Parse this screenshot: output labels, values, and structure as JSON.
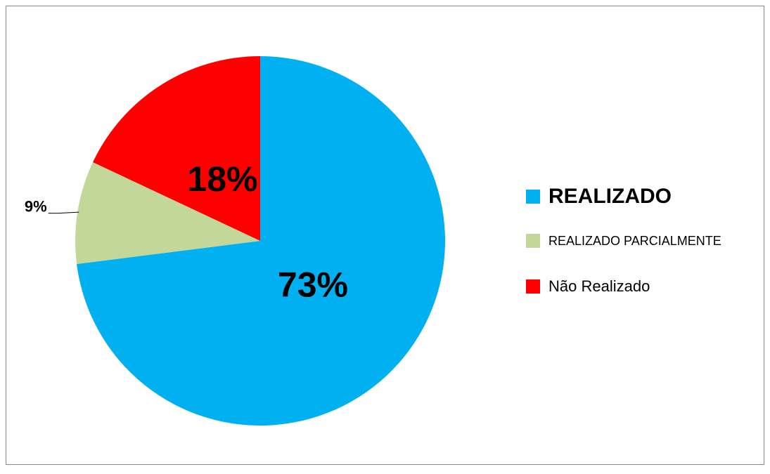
{
  "chart_data": {
    "type": "pie",
    "categories": [
      "REALIZADO",
      "REALIZADO PARCIALMENTE",
      "Não Realizado"
    ],
    "values": [
      73,
      9,
      18
    ],
    "value_labels": [
      "73%",
      "9%",
      "18%"
    ],
    "colors": [
      "#00b0f0",
      "#c4d79b",
      "#ff0000"
    ],
    "legend": "right"
  }
}
